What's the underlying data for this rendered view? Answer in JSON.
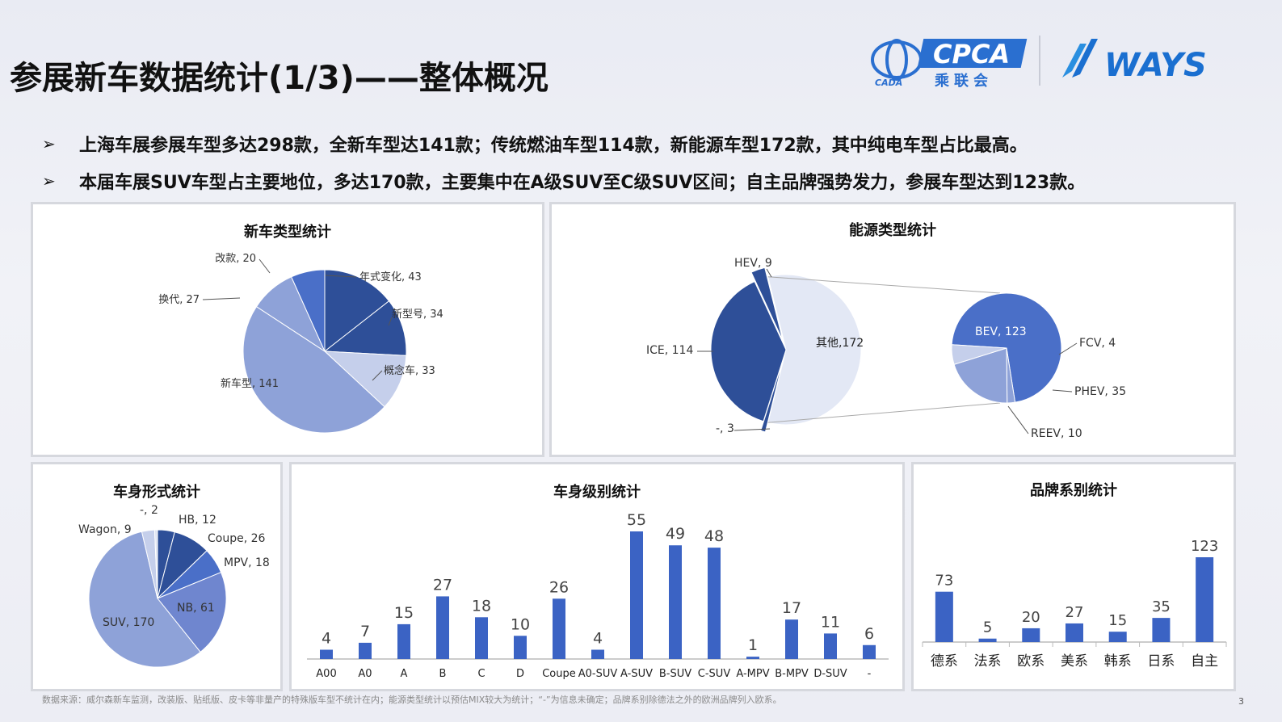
{
  "header": {
    "title": "参展新车数据统计(1/3)——整体概况",
    "logo_cada": "CADA",
    "logo_cpca": "CPCA",
    "logo_cpca_cn": "乘联会",
    "logo_ways": "WAYS"
  },
  "bullets": [
    {
      "mark": "➢",
      "text": "上海车展参展车型多达298款，全新车型达141款；传统燃油车型114款，新能源车型172款，其中纯电车型占比最高。"
    },
    {
      "mark": "➢",
      "text": "本届车展SUV车型占主要地位，多达170款，主要集中在A级SUV至C级SUV区间；自主品牌强势发力，参展车型达到123款。"
    }
  ],
  "colors": {
    "dark": "#2e4f98",
    "mid": "#4a6fc8",
    "light": "#8ea2d8",
    "pale": "#c5cfeb",
    "bar": "#3b63c4"
  },
  "chart_data": [
    {
      "type": "pie",
      "title": "新车类型统计",
      "slices": [
        {
          "name": "年式变化",
          "value": 43,
          "label": "年式变化, 43"
        },
        {
          "name": "新型号",
          "value": 34,
          "label": "新型号, 34"
        },
        {
          "name": "概念车",
          "value": 33,
          "label": "概念车, 33"
        },
        {
          "name": "新车型",
          "value": 141,
          "label": "新车型, 141"
        },
        {
          "name": "换代",
          "value": 27,
          "label": "换代, 27"
        },
        {
          "name": "改款",
          "value": 20,
          "label": "改款, 20"
        }
      ]
    },
    {
      "type": "pie",
      "title": "能源类型统计",
      "slices": [
        {
          "name": "HEV",
          "value": 9,
          "label": "HEV, 9"
        },
        {
          "name": "其他",
          "value": 172,
          "label": "其他,172"
        },
        {
          "name": "-",
          "value": 3,
          "label": "-, 3"
        },
        {
          "name": "ICE",
          "value": 114,
          "label": "ICE, 114"
        }
      ],
      "breakdown_of": "其他",
      "breakdown": [
        {
          "name": "BEV",
          "value": 123,
          "label": "BEV, 123"
        },
        {
          "name": "FCV",
          "value": 4,
          "label": "FCV, 4"
        },
        {
          "name": "PHEV",
          "value": 35,
          "label": "PHEV, 35"
        },
        {
          "name": "REEV",
          "value": 10,
          "label": "REEV, 10"
        }
      ]
    },
    {
      "type": "pie",
      "title": "车身形式统计",
      "slices": [
        {
          "name": "HB",
          "value": 12,
          "label": "HB, 12"
        },
        {
          "name": "Coupe",
          "value": 26,
          "label": "Coupe, 26"
        },
        {
          "name": "MPV",
          "value": 18,
          "label": "MPV, 18"
        },
        {
          "name": "NB",
          "value": 61,
          "label": "NB, 61"
        },
        {
          "name": "SUV",
          "value": 170,
          "label": "SUV, 170"
        },
        {
          "name": "Wagon",
          "value": 9,
          "label": "Wagon, 9"
        },
        {
          "name": "-",
          "value": 2,
          "label": "-, 2"
        }
      ]
    },
    {
      "type": "bar",
      "title": "车身级别统计",
      "categories": [
        "A00",
        "A0",
        "A",
        "B",
        "C",
        "D",
        "Coupe",
        "A0-SUV",
        "A-SUV",
        "B-SUV",
        "C-SUV",
        "A-MPV",
        "B-MPV",
        "D-SUV",
        "-"
      ],
      "values": [
        4,
        7,
        15,
        27,
        18,
        10,
        26,
        4,
        55,
        49,
        48,
        1,
        17,
        11,
        6
      ]
    },
    {
      "type": "bar",
      "title": "品牌系别统计",
      "categories": [
        "德系",
        "法系",
        "欧系",
        "美系",
        "韩系",
        "日系",
        "自主"
      ],
      "values": [
        73,
        5,
        20,
        27,
        15,
        35,
        123
      ]
    }
  ],
  "footnote": "数据来源：威尔森新车监测，改装版、贴纸版、皮卡等非量产的特殊版车型不统计在内；能源类型统计以预估MIX较大为统计；“-”为信息未确定；品牌系别除德法之外的欧洲品牌列入欧系。",
  "page_number": "3"
}
